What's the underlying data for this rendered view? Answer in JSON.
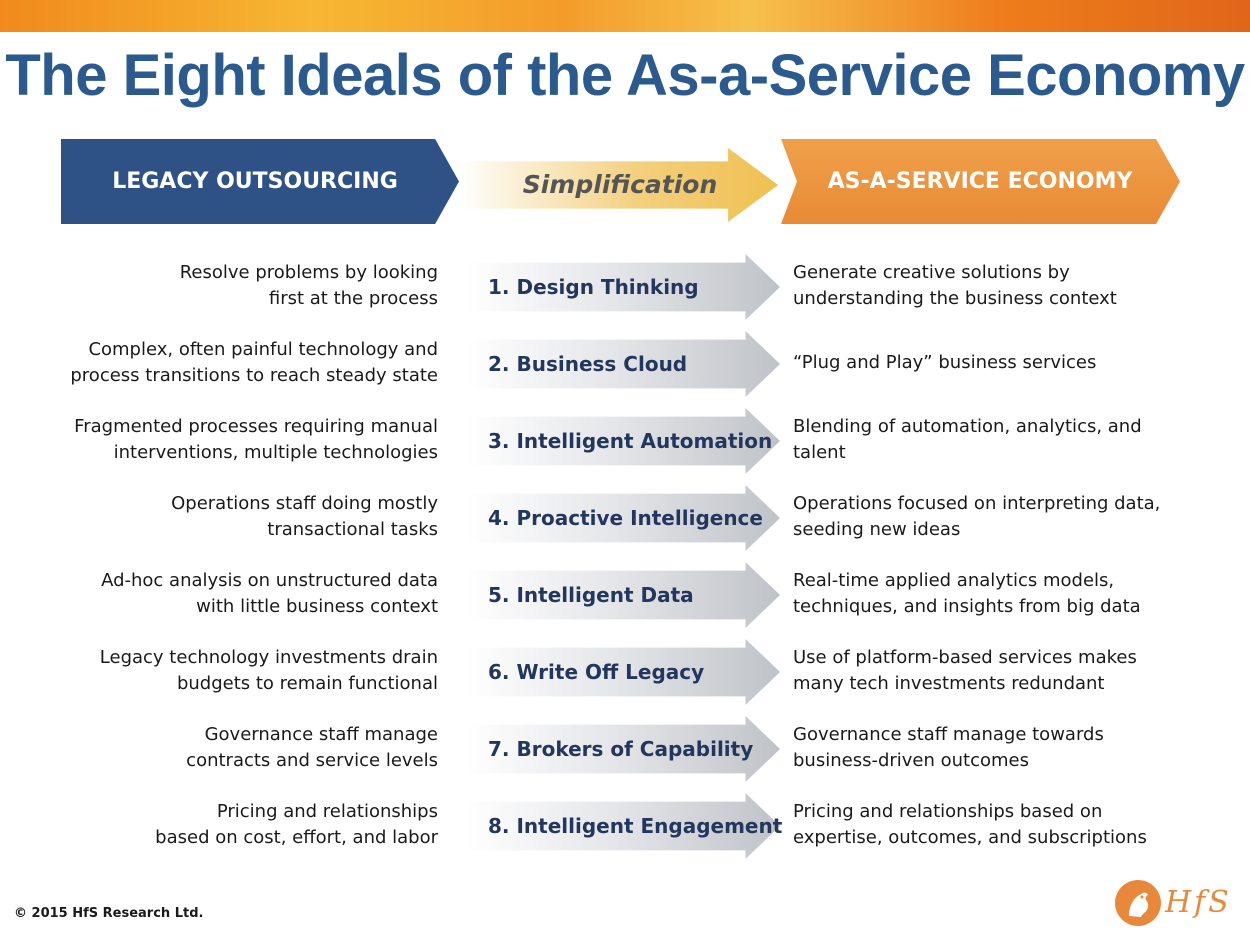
{
  "title": "The Eight Ideals of the As-a-Service Economy",
  "headers": {
    "left": "LEGACY OUTSOURCING",
    "middle": "Simplification",
    "right": "AS-A-SERVICE ECONOMY"
  },
  "rows": [
    {
      "legacy": "Resolve problems by looking\nfirst at the process",
      "ideal": "1. Design Thinking",
      "service": "Generate creative solutions by\nunderstanding the business context"
    },
    {
      "legacy": "Complex, often painful technology and\nprocess transitions to reach steady state",
      "ideal": "2. Business Cloud",
      "service": "“Plug and Play” business services"
    },
    {
      "legacy": "Fragmented processes requiring manual\ninterventions, multiple technologies",
      "ideal": "3. Intelligent Automation",
      "service": "Blending of automation, analytics, and\ntalent"
    },
    {
      "legacy": "Operations staff doing mostly\ntransactional tasks",
      "ideal": "4. Proactive Intelligence",
      "service": "Operations focused on interpreting data,\nseeding new ideas"
    },
    {
      "legacy": "Ad-hoc analysis on unstructured data\nwith little business context",
      "ideal": "5. Intelligent Data",
      "service": "Real-time applied analytics models,\ntechniques, and insights from big data"
    },
    {
      "legacy": "Legacy technology investments drain\nbudgets to remain functional",
      "ideal": "6. Write Off Legacy",
      "service": "Use of platform-based services makes\nmany tech investments redundant"
    },
    {
      "legacy": "Governance staff manage\ncontracts and service levels",
      "ideal": "7. Brokers of Capability",
      "service": "Governance staff manage towards\nbusiness-driven outcomes"
    },
    {
      "legacy": "Pricing and relationships\nbased on cost, effort, and labor",
      "ideal": "8. Intelligent Engagement",
      "service": "Pricing and relationships based on\nexpertise, outcomes, and subscriptions"
    }
  ],
  "footer": {
    "copyright": "© 2015 HfS Research Ltd.",
    "logo_text": "HfS",
    "logo_icon": "hfs-horse-logo-icon"
  },
  "colors": {
    "title": "#2b5a8e",
    "legacy_header": "#2f5286",
    "service_header": "#e88a35",
    "ideal_text": "#23375e"
  }
}
